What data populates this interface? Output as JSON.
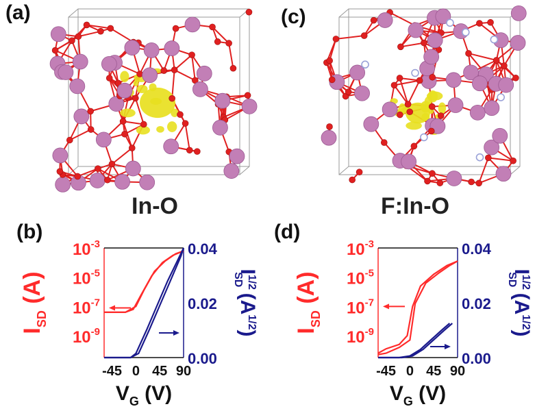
{
  "panels": {
    "a": "(a)",
    "b": "(b)",
    "c": "(c)",
    "d": "(d)"
  },
  "structures": [
    {
      "label": "In-O",
      "atom_color": "#c27fb6",
      "bond_color": "#e02020",
      "density_color": "#e8e020"
    },
    {
      "label": "F:In-O",
      "atom_color": "#c27fb6",
      "bond_color": "#e02020",
      "density_color": "#e8e020",
      "dopant_color": "#9aa2d8"
    }
  ],
  "chart_data": [
    {
      "type": "line",
      "panel": "(b)",
      "xlabel_main": "V",
      "xlabel_sub": "G",
      "xlabel_unit": " (V)",
      "x_ticks": [
        "-45",
        "0",
        "45",
        "90"
      ],
      "xlim": [
        -60,
        90
      ],
      "y_left_label_main": "I",
      "y_left_label_sub": "SD",
      "y_left_label_unit": " (A)",
      "y_left_ticks": [
        {
          "base": "10",
          "exp": "-3"
        },
        {
          "base": "10",
          "exp": "-5"
        },
        {
          "base": "10",
          "exp": "-7"
        },
        {
          "base": "10",
          "exp": "-9"
        }
      ],
      "y_left_log_range": [
        -10.5,
        -3
      ],
      "y_right_label_main": "I",
      "y_right_label_sub": "SD",
      "y_right_label_sup": "1/2",
      "y_right_label_unit_base": " (A",
      "y_right_label_unit_sup": "1/2",
      "y_right_label_unit_close": ")",
      "y_right_ticks": [
        "0.04",
        "0.02",
        "0.00"
      ],
      "y_right_range": [
        0,
        0.04
      ],
      "colors": {
        "left": "#ff2b2b",
        "right": "#1a1a8c"
      },
      "series": [
        {
          "axis": "left",
          "x": [
            -60,
            -20,
            -5,
            10,
            30,
            50,
            70,
            90
          ],
          "y": [
            -7.4,
            -7.4,
            -7.2,
            -6.2,
            -4.9,
            -4.0,
            -3.5,
            -3.2
          ]
        },
        {
          "axis": "left",
          "x": [
            -60,
            -20,
            0,
            15,
            35,
            55,
            75,
            90
          ],
          "y": [
            -7.4,
            -7.4,
            -7.0,
            -5.9,
            -4.6,
            -3.9,
            -3.4,
            -3.2
          ]
        },
        {
          "axis": "right",
          "x": [
            -60,
            -10,
            0,
            20,
            40,
            60,
            80,
            90
          ],
          "y": [
            0.0,
            0.0,
            0.0015,
            0.01,
            0.019,
            0.028,
            0.036,
            0.04
          ]
        },
        {
          "axis": "right",
          "x": [
            -60,
            -10,
            5,
            25,
            45,
            65,
            85,
            90
          ],
          "y": [
            0.0,
            0.0,
            0.0015,
            0.01,
            0.019,
            0.028,
            0.037,
            0.04
          ]
        }
      ]
    },
    {
      "type": "line",
      "panel": "(d)",
      "xlabel_main": "V",
      "xlabel_sub": "G",
      "xlabel_unit": " (V)",
      "x_ticks": [
        "-45",
        "0",
        "45",
        "90"
      ],
      "xlim": [
        -60,
        90
      ],
      "y_left_label_main": "I",
      "y_left_label_sub": "SD",
      "y_left_label_unit": " (A)",
      "y_left_ticks": [
        {
          "base": "10",
          "exp": "-3"
        },
        {
          "base": "10",
          "exp": "-5"
        },
        {
          "base": "10",
          "exp": "-7"
        },
        {
          "base": "10",
          "exp": "-9"
        }
      ],
      "y_left_log_range": [
        -10.5,
        -3
      ],
      "y_right_label_main": "I",
      "y_right_label_sub": "SD",
      "y_right_label_sup": "1/2",
      "y_right_label_unit_base": " (A",
      "y_right_label_unit_sup": "1/2",
      "y_right_label_unit_close": ")",
      "y_right_ticks": [
        "0.04",
        "0.02",
        "0.00"
      ],
      "y_right_range": [
        0,
        0.04
      ],
      "colors": {
        "left": "#ff2b2b",
        "right": "#1a1a8c"
      },
      "series": [
        {
          "axis": "left",
          "x": [
            -60,
            -45,
            -20,
            -5,
            5,
            20,
            45,
            70,
            90
          ],
          "y": [
            -10.2,
            -9.9,
            -9.6,
            -9.0,
            -7.0,
            -5.6,
            -4.8,
            -4.2,
            -3.9
          ]
        },
        {
          "axis": "left",
          "x": [
            -60,
            -45,
            -20,
            0,
            10,
            30,
            55,
            75,
            90
          ],
          "y": [
            -10.3,
            -10.2,
            -9.8,
            -9.3,
            -6.8,
            -5.4,
            -4.7,
            -4.2,
            -3.9
          ]
        },
        {
          "axis": "right",
          "x": [
            -60,
            -20,
            0,
            20,
            40,
            60,
            75
          ],
          "y": [
            0.0,
            0.0,
            0.0006,
            0.003,
            0.0065,
            0.01,
            0.0125
          ]
        },
        {
          "axis": "right",
          "x": [
            -60,
            -15,
            5,
            25,
            45,
            65,
            80
          ],
          "y": [
            0.0,
            0.0,
            0.0006,
            0.003,
            0.0065,
            0.01,
            0.0125
          ]
        }
      ]
    }
  ]
}
